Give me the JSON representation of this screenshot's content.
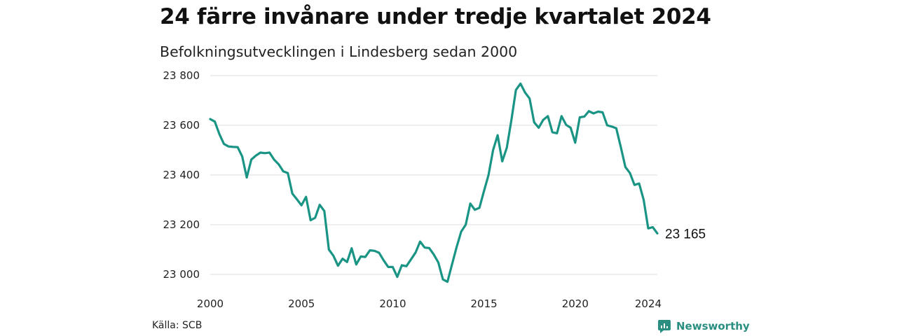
{
  "header": {
    "title": "24 färre invånare under tredje kvartalet 2024",
    "subtitle": "Befolkningsutvecklingen i Lindesberg sedan 2000"
  },
  "footer": {
    "source": "Källa: SCB",
    "brand": "Newsworthy"
  },
  "colors": {
    "line": "#1a9484",
    "grid": "#dddddd",
    "brand": "#2a8f80"
  },
  "chart_data": {
    "type": "line",
    "title": "24 färre invånare under tredje kvartalet 2024",
    "subtitle": "Befolkningsutvecklingen i Lindesberg sedan 2000",
    "xlabel": "",
    "ylabel": "",
    "xlim": [
      2000,
      2024.5
    ],
    "ylim": [
      23000,
      23800
    ],
    "x_ticks": [
      2000,
      2005,
      2010,
      2015,
      2020,
      2024
    ],
    "y_ticks": [
      23000,
      23200,
      23400,
      23600,
      23800
    ],
    "y_tick_labels": [
      "23 000",
      "23 200",
      "23 400",
      "23 600",
      "23 800"
    ],
    "grid": "horizontal",
    "end_label": "23 165",
    "series": [
      {
        "x": [
          2000.0,
          2000.25,
          2000.5,
          2000.75,
          2001.0,
          2001.25,
          2001.5,
          2001.75,
          2002.0,
          2002.25,
          2002.5,
          2002.75,
          2003.0,
          2003.25,
          2003.5,
          2003.75,
          2004.0,
          2004.25,
          2004.5,
          2004.75,
          2005.0,
          2005.25,
          2005.5,
          2005.75,
          2006.0,
          2006.25,
          2006.5,
          2006.75,
          2007.0,
          2007.25,
          2007.5,
          2007.75,
          2008.0,
          2008.25,
          2008.5,
          2008.75,
          2009.0,
          2009.25,
          2009.5,
          2009.75,
          2010.0,
          2010.25,
          2010.5,
          2010.75,
          2011.0,
          2011.25,
          2011.5,
          2011.75,
          2012.0,
          2012.25,
          2012.5,
          2012.75,
          2013.0,
          2013.25,
          2013.5,
          2013.75,
          2014.0,
          2014.25,
          2014.5,
          2014.75,
          2015.0,
          2015.25,
          2015.5,
          2015.75,
          2016.0,
          2016.25,
          2016.5,
          2016.75,
          2017.0,
          2017.25,
          2017.5,
          2017.75,
          2018.0,
          2018.25,
          2018.5,
          2018.75,
          2019.0,
          2019.25,
          2019.5,
          2019.75,
          2020.0,
          2020.25,
          2020.5,
          2020.75,
          2021.0,
          2021.25,
          2021.5,
          2021.75,
          2022.0,
          2022.25,
          2022.5,
          2022.75,
          2023.0,
          2023.25,
          2023.5,
          2023.75,
          2024.0,
          2024.25,
          2024.5
        ],
        "values": [
          23625,
          23615,
          23565,
          23525,
          23515,
          23513,
          23512,
          23475,
          23390,
          23462,
          23478,
          23490,
          23488,
          23490,
          23462,
          23443,
          23415,
          23408,
          23325,
          23302,
          23278,
          23312,
          23218,
          23228,
          23280,
          23255,
          23100,
          23075,
          23035,
          23063,
          23050,
          23105,
          23040,
          23072,
          23070,
          23097,
          23095,
          23087,
          23057,
          23030,
          23030,
          22990,
          23037,
          23033,
          23060,
          23088,
          23132,
          23108,
          23106,
          23080,
          23048,
          22980,
          22970,
          23040,
          23110,
          23172,
          23200,
          23285,
          23260,
          23268,
          23335,
          23400,
          23500,
          23560,
          23455,
          23510,
          23620,
          23742,
          23768,
          23732,
          23708,
          23612,
          23590,
          23622,
          23637,
          23572,
          23568,
          23637,
          23602,
          23590,
          23530,
          23632,
          23635,
          23657,
          23648,
          23655,
          23652,
          23600,
          23595,
          23588,
          23512,
          23432,
          23408,
          23360,
          23366,
          23300,
          23185,
          23190,
          23165
        ]
      }
    ]
  }
}
